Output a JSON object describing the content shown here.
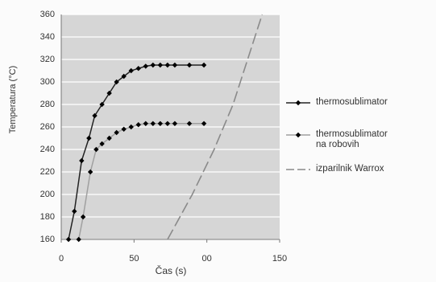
{
  "chart_data": {
    "type": "line",
    "x_label": "Čas (s)",
    "y_label": "Temperatura (°C)",
    "xlim": [
      0,
      150
    ],
    "xticks": [
      0,
      50,
      {
        "value": 100,
        "label": "00"
      },
      150
    ],
    "ylim": [
      160,
      360
    ],
    "yticks": [
      160,
      180,
      200,
      220,
      240,
      260,
      280,
      300,
      320,
      340,
      360
    ],
    "grid": true,
    "plot_background": "#d6d6d6",
    "legend_position": "right",
    "series": [
      {
        "name": "thermosublimator",
        "color": "#000000",
        "line_color": "#222222",
        "dashed": false,
        "markers": true,
        "x": [
          5,
          9,
          14,
          19,
          23,
          28,
          33,
          38,
          43,
          48,
          53,
          58,
          63,
          68,
          73,
          78,
          88,
          98
        ],
        "values": [
          160,
          185,
          230,
          250,
          270,
          280,
          290,
          300,
          305,
          310,
          312,
          314,
          315,
          315,
          315,
          315,
          315,
          315
        ]
      },
      {
        "name": "thermosublimator na robovih",
        "color": "#000000",
        "line_color": "#a0a0a0",
        "dashed": false,
        "markers": true,
        "x": [
          12,
          15,
          20,
          24,
          28,
          33,
          38,
          43,
          48,
          53,
          58,
          63,
          68,
          73,
          78,
          88,
          98
        ],
        "values": [
          160,
          180,
          220,
          240,
          245,
          250,
          255,
          258,
          260,
          262,
          263,
          263,
          263,
          263,
          263,
          263,
          263
        ]
      },
      {
        "name": "izparilnik Warrox",
        "color": "#8a8a8a",
        "line_color": "#8a8a8a",
        "dashed": true,
        "markers": false,
        "x": [
          73,
          90,
          105,
          118,
          128,
          138
        ],
        "values": [
          160,
          200,
          240,
          280,
          320,
          360
        ]
      }
    ]
  }
}
